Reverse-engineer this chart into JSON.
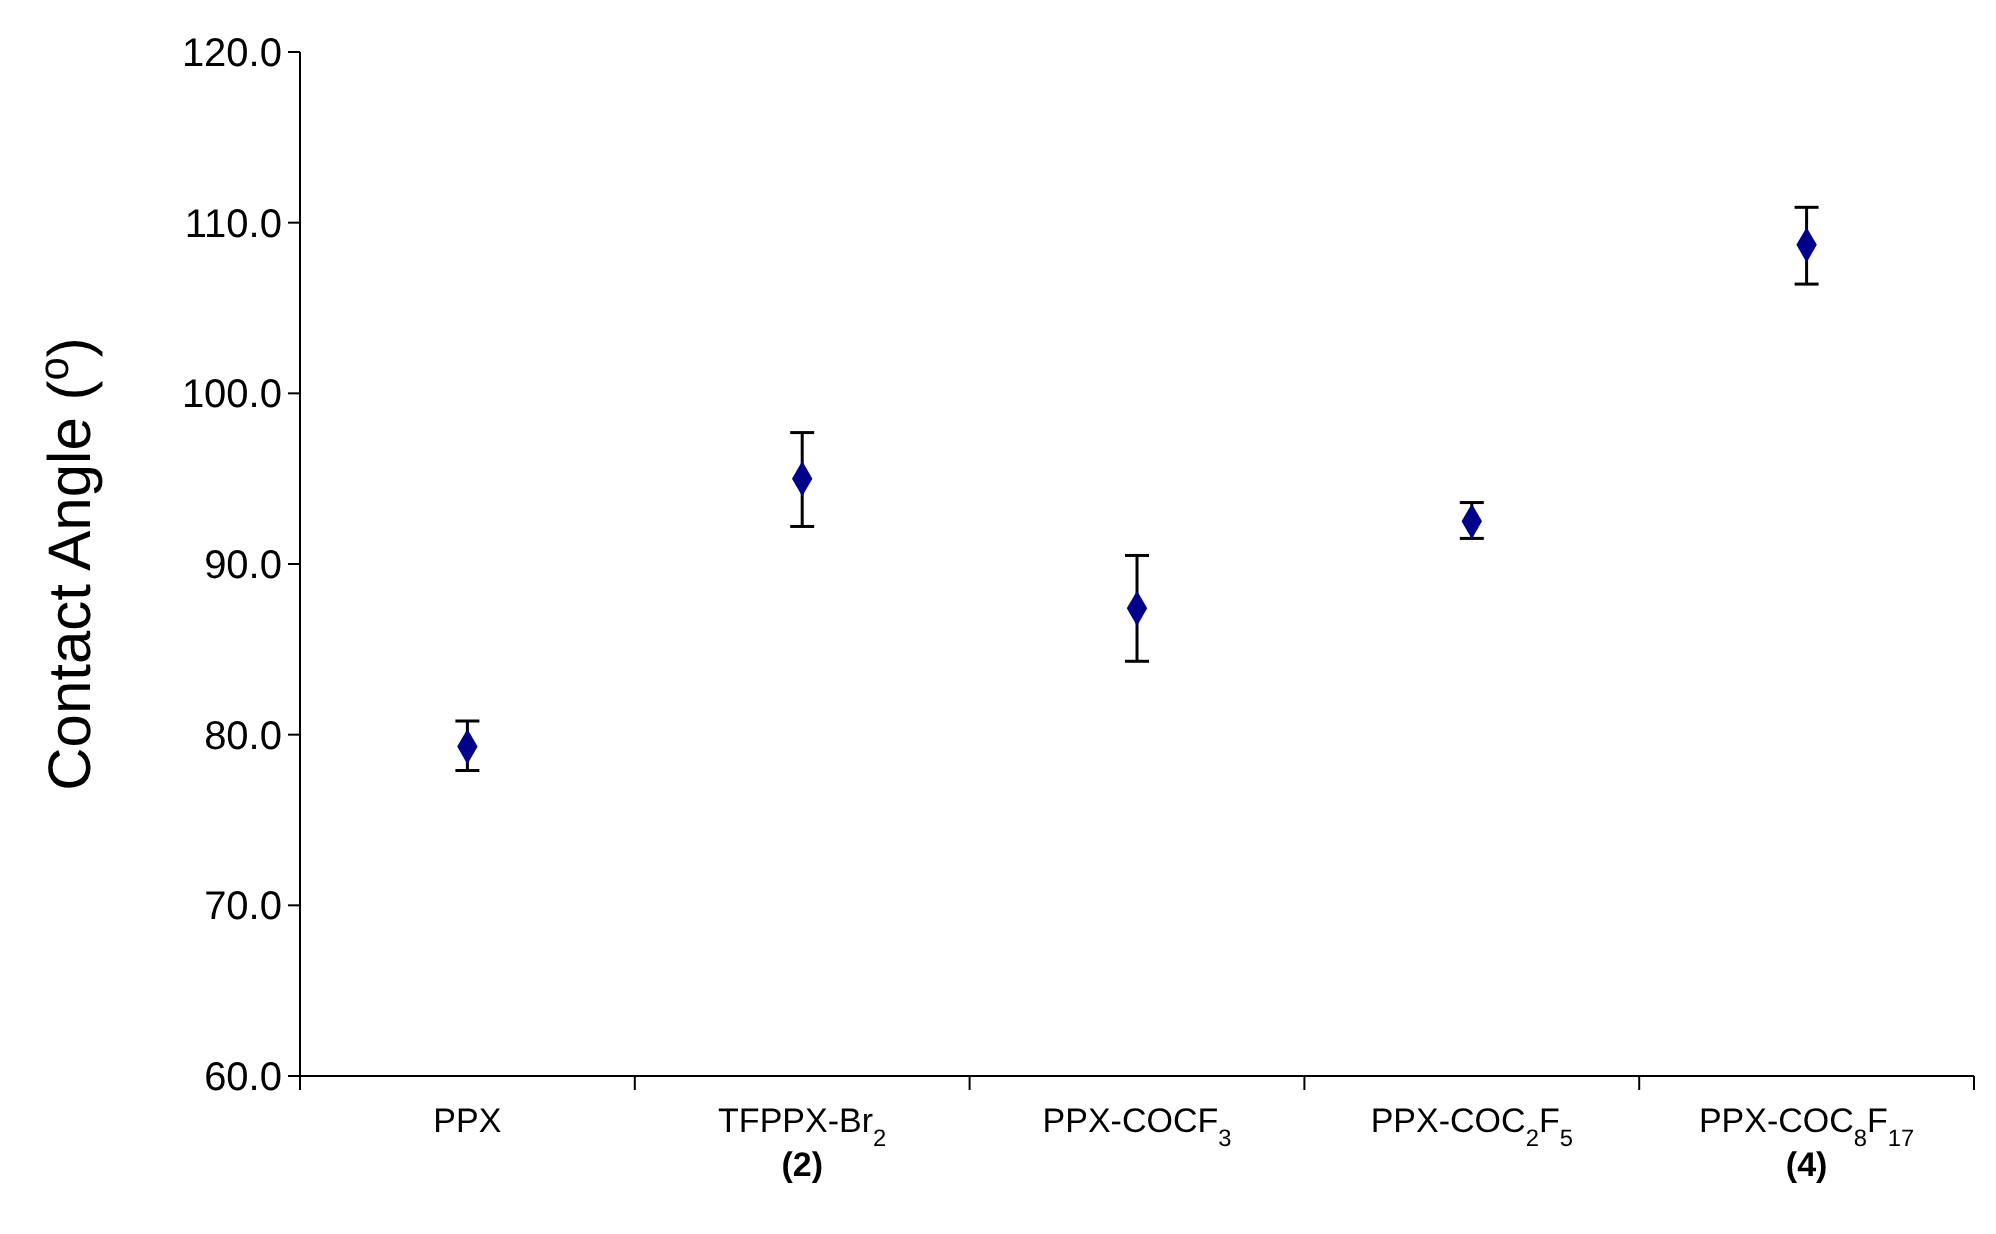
{
  "chart_data": {
    "type": "scatter",
    "ylabel": "Contact Angle ($^{o}$)",
    "categories": [
      "PPX",
      "TFPPX-Br$_{2}$\n(2)",
      "PPX-COCF$_{3}$",
      "PPX-COC$_{2}$F$_{5}$",
      "PPX-COC$_{8}$F$_{17}$\n(4)"
    ],
    "values": [
      79.3,
      95.0,
      87.4,
      92.5,
      108.7
    ],
    "errors": [
      [
        77.9,
        80.8
      ],
      [
        92.2,
        97.7
      ],
      [
        84.3,
        90.5
      ],
      [
        91.5,
        93.6
      ],
      [
        106.4,
        110.9
      ]
    ],
    "color": "#00008b",
    "marker": "diamond",
    "grid": false,
    "ylim": [
      60,
      120
    ],
    "yticks": [
      {
        "value": 60,
        "label": "60.0"
      },
      {
        "value": 70,
        "label": "70.0"
      },
      {
        "value": 80,
        "label": "80.0"
      },
      {
        "value": 90,
        "label": "90.0"
      },
      {
        "value": 100,
        "label": "100.0"
      },
      {
        "value": 110,
        "label": "110.0"
      },
      {
        "value": 120,
        "label": "120.0"
      }
    ]
  }
}
